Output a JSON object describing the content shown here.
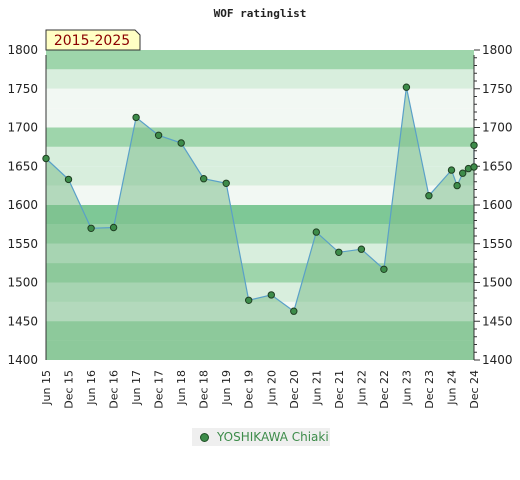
{
  "chart_data": {
    "type": "line",
    "title": "WOF ratinglist",
    "badge": "2015-2025",
    "x_categories": [
      "Jun 15",
      "Dec 15",
      "Jun 16",
      "Dec 16",
      "Jun 17",
      "Dec 17",
      "Jun 18",
      "Dec 18",
      "Jun 19",
      "Dec 19",
      "Jun 20",
      "Dec 20",
      "Jun 21",
      "Dec 21",
      "Jun 22",
      "Dec 22",
      "Jun 23",
      "Dec 23",
      "Jun 24",
      "Dec 24"
    ],
    "y_ticks": [
      "1400",
      "1450",
      "1500",
      "1550",
      "1600",
      "1650",
      "1700",
      "1750",
      "1800"
    ],
    "ylim": [
      1400,
      1800
    ],
    "series": [
      {
        "name": "YOSHIKAWA Chiaki",
        "color": "#3d8c4a",
        "points": [
          {
            "x": "Jun 15",
            "y": 1660
          },
          {
            "x": "Dec 15",
            "y": 1633
          },
          {
            "x": "Jun 16",
            "y": 1570
          },
          {
            "x": "Dec 16",
            "y": 1571
          },
          {
            "x": "Jun 17",
            "y": 1713
          },
          {
            "x": "Dec 17",
            "y": 1690
          },
          {
            "x": "Jun 18",
            "y": 1680
          },
          {
            "x": "Dec 18",
            "y": 1634
          },
          {
            "x": "Jun 19",
            "y": 1628
          },
          {
            "x": "Dec 19",
            "y": 1477
          },
          {
            "x": "Jun 20",
            "y": 1484
          },
          {
            "x": "Dec 20",
            "y": 1463
          },
          {
            "x": "Jun 21",
            "y": 1565
          },
          {
            "x": "Dec 21",
            "y": 1539
          },
          {
            "x": "Jun 22",
            "y": 1543
          },
          {
            "x": "Dec 22",
            "y": 1517
          },
          {
            "x": "Jun 23",
            "y": 1752
          },
          {
            "x": "Dec 23",
            "y": 1612
          },
          {
            "x": "Jun 24",
            "y": 1645
          },
          {
            "x": "Jun 24",
            "y": 1625
          },
          {
            "x": "Jun 24",
            "y": 1641
          },
          {
            "x": "Jun 24",
            "y": 1647
          },
          {
            "x": "Dec 24",
            "y": 1649
          },
          {
            "x": "Dec 24",
            "y": 1677
          }
        ]
      }
    ],
    "line_color": "#5aa0c8",
    "area_color": "#7fbf8e",
    "marker_color": "#3d8c4a",
    "band_colors": {
      "dark": "#7ec896",
      "mid": "#9ed5ab",
      "light": "#d8eedd",
      "pale": "#f2f8f3"
    },
    "legend_position": "bottom-center",
    "grid": false
  }
}
